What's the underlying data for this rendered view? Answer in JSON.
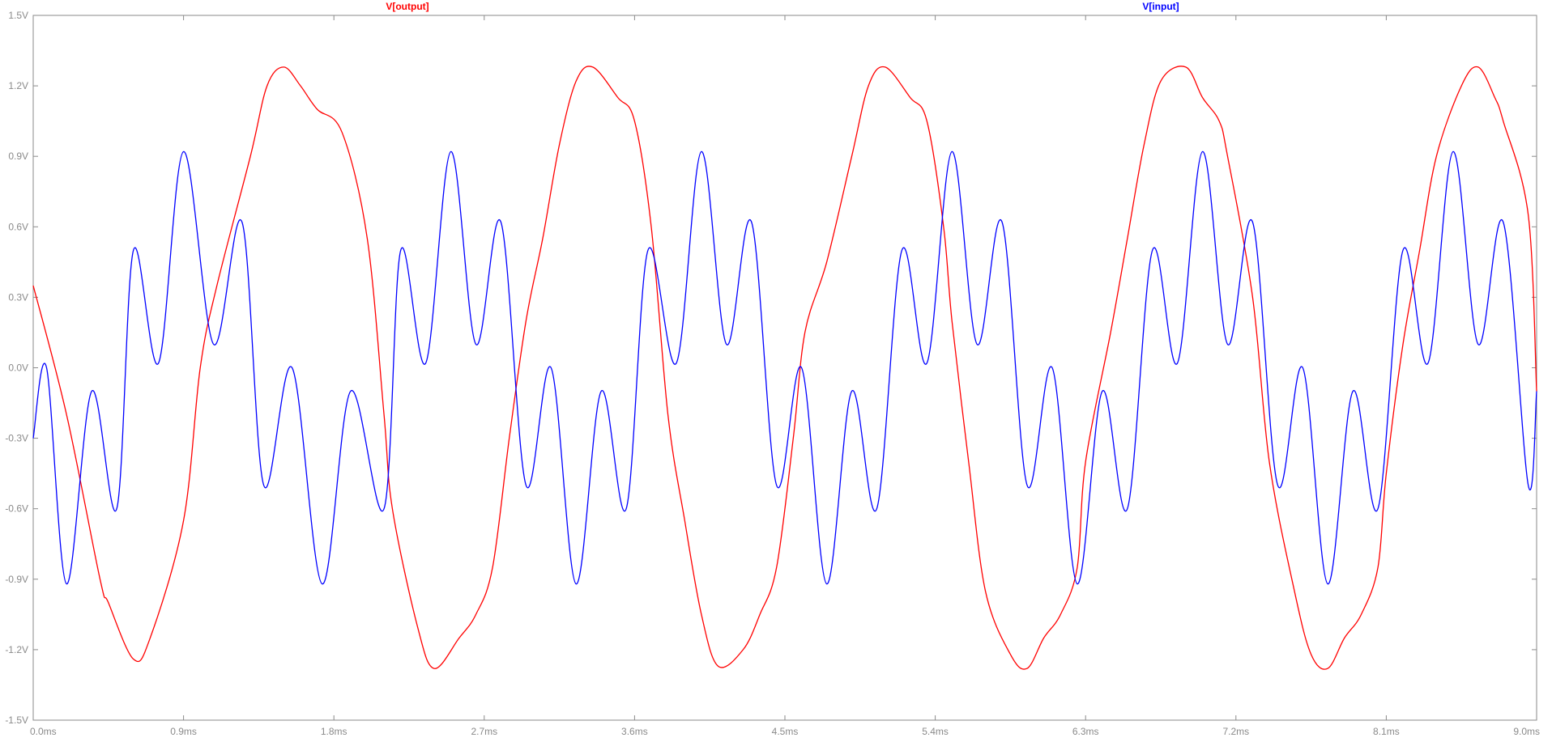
{
  "chart_data": {
    "type": "line",
    "title": "",
    "xlabel": "",
    "ylabel": "",
    "xlim": [
      0,
      9.0
    ],
    "ylim": [
      -1.5,
      1.5
    ],
    "x_unit": "ms",
    "y_unit": "V",
    "x_ticks": [
      "0.0ms",
      "0.9ms",
      "1.8ms",
      "2.7ms",
      "3.6ms",
      "4.5ms",
      "5.4ms",
      "6.3ms",
      "7.2ms",
      "8.1ms",
      "9.0ms"
    ],
    "y_ticks": [
      "1.5V",
      "1.2V",
      "0.9V",
      "0.6V",
      "0.3V",
      "0.0V",
      "-0.3V",
      "-0.6V",
      "-0.9V",
      "-1.2V",
      "-1.5V"
    ],
    "x_tick_values": [
      0.0,
      0.9,
      1.8,
      2.7,
      3.6,
      4.5,
      5.4,
      6.3,
      7.2,
      8.1,
      9.0
    ],
    "y_tick_values": [
      1.5,
      1.2,
      0.9,
      0.6,
      0.3,
      0.0,
      -0.3,
      -0.6,
      -0.9,
      -1.2,
      -1.5
    ],
    "grid": false,
    "legend_placement": "top",
    "series": [
      {
        "name": "V[output]",
        "color": "#ff0000",
        "x": [
          0.0,
          0.2,
          0.4,
          0.45,
          0.6,
          0.7,
          0.9,
          1.0,
          1.1,
          1.3,
          1.4,
          1.5,
          1.6,
          1.7,
          1.85,
          2.0,
          2.1,
          2.15,
          2.3,
          2.4,
          2.55,
          2.65,
          2.75,
          2.85,
          2.95,
          3.05,
          3.15,
          3.25,
          3.35,
          3.5,
          3.6,
          3.7,
          3.8,
          3.9,
          4.0,
          4.1,
          4.25,
          4.35,
          4.45,
          4.55,
          4.62,
          4.75,
          4.9,
          5.0,
          5.1,
          5.25,
          5.35,
          5.45,
          5.5,
          5.6,
          5.7,
          5.85,
          5.95,
          6.05,
          6.15,
          6.25,
          6.3,
          6.45,
          6.55,
          6.65,
          6.75,
          6.9,
          7.0,
          7.1,
          7.15,
          7.3,
          7.4,
          7.55,
          7.65,
          7.75,
          7.85,
          7.95,
          8.05,
          8.1,
          8.2,
          8.3,
          8.4,
          8.55,
          8.65,
          8.75,
          8.8,
          8.95,
          9.0
        ],
        "y": [
          0.35,
          -0.2,
          -0.9,
          -1.0,
          -1.24,
          -1.15,
          -0.65,
          0.0,
          0.35,
          0.9,
          1.2,
          1.28,
          1.2,
          1.1,
          1.0,
          0.55,
          -0.2,
          -0.6,
          -1.1,
          -1.28,
          -1.15,
          -1.05,
          -0.85,
          -0.3,
          0.2,
          0.55,
          0.95,
          1.22,
          1.28,
          1.15,
          1.05,
          0.6,
          -0.2,
          -0.65,
          -1.05,
          -1.27,
          -1.2,
          -1.05,
          -0.85,
          -0.3,
          0.15,
          0.45,
          0.9,
          1.2,
          1.28,
          1.15,
          1.05,
          0.6,
          0.2,
          -0.4,
          -0.95,
          -1.22,
          -1.28,
          -1.15,
          -1.05,
          -0.85,
          -0.4,
          0.15,
          0.55,
          0.95,
          1.22,
          1.28,
          1.15,
          1.05,
          0.9,
          0.3,
          -0.4,
          -0.95,
          -1.22,
          -1.28,
          -1.15,
          -1.05,
          -0.85,
          -0.45,
          0.1,
          0.5,
          0.9,
          1.2,
          1.28,
          1.15,
          1.05,
          0.65,
          -0.1
        ]
      },
      {
        "name": "V[input]",
        "color": "#0000ff",
        "x": [
          0.0,
          0.08,
          0.2,
          0.35,
          0.5,
          0.6,
          0.75,
          0.9,
          1.08,
          1.25,
          1.38,
          1.55,
          1.73,
          1.9,
          2.1,
          2.2,
          2.35,
          2.5,
          2.65,
          2.8,
          2.95,
          3.1,
          3.25,
          3.4,
          3.55,
          3.68,
          3.85,
          4.0,
          4.15,
          4.3,
          4.45,
          4.6,
          4.75,
          4.9,
          5.05,
          5.2,
          5.35,
          5.5,
          5.65,
          5.8,
          5.95,
          6.1,
          6.25,
          6.4,
          6.55,
          6.7,
          6.85,
          7.0,
          7.15,
          7.3,
          7.45,
          7.6,
          7.75,
          7.9,
          8.05,
          8.2,
          8.35,
          8.5,
          8.65,
          8.8,
          8.95,
          9.0
        ],
        "y": [
          -0.3,
          0.0,
          -0.92,
          -0.1,
          -0.6,
          0.5,
          0.02,
          0.92,
          0.1,
          0.62,
          -0.5,
          0.0,
          -0.92,
          -0.1,
          -0.6,
          0.5,
          0.02,
          0.92,
          0.1,
          0.62,
          -0.5,
          0.0,
          -0.92,
          -0.1,
          -0.6,
          0.5,
          0.02,
          0.92,
          0.1,
          0.62,
          -0.5,
          0.0,
          -0.92,
          -0.1,
          -0.6,
          0.5,
          0.02,
          0.92,
          0.1,
          0.62,
          -0.5,
          0.0,
          -0.92,
          -0.1,
          -0.6,
          0.5,
          0.02,
          0.92,
          0.1,
          0.62,
          -0.5,
          0.0,
          -0.92,
          -0.1,
          -0.6,
          0.5,
          0.02,
          0.92,
          0.1,
          0.62,
          -0.5,
          -0.1
        ]
      }
    ]
  }
}
